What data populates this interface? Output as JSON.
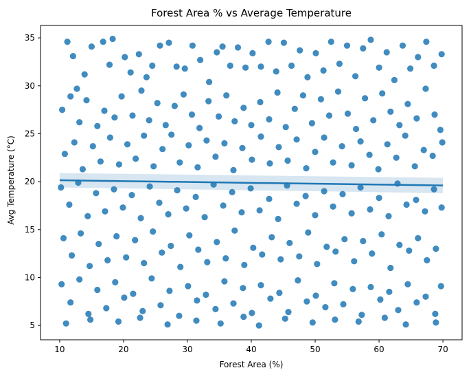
{
  "chart_data": {
    "type": "scatter",
    "title": "Forest Area % vs Average Temperature",
    "xlabel": "Forest Area (%)",
    "ylabel": "Avg Temperature (°C)",
    "xlim": [
      7.0,
      73.0
    ],
    "ylim": [
      3.5,
      36.3
    ],
    "xticks": [
      10,
      20,
      30,
      40,
      50,
      60,
      70
    ],
    "yticks": [
      5,
      10,
      15,
      20,
      25,
      30,
      35
    ],
    "grid": false,
    "legend": "none",
    "colors": {
      "points": "#1f77b4",
      "regression_line": "#1f77b4",
      "confidence_band": "#1f77b4"
    },
    "point_count_note": "dense uniform scatter, values sampled",
    "points": [
      [
        11.2,
        34.6
      ],
      [
        12.1,
        33.1
      ],
      [
        12.7,
        29.7
      ],
      [
        13.9,
        31.2
      ],
      [
        15.0,
        34.1
      ],
      [
        16.8,
        34.6
      ],
      [
        17.8,
        32.2
      ],
      [
        18.3,
        34.9
      ],
      [
        20.2,
        33.0
      ],
      [
        21.1,
        31.4
      ],
      [
        22.4,
        33.3
      ],
      [
        23.6,
        30.9
      ],
      [
        24.5,
        32.1
      ],
      [
        25.7,
        34.2
      ],
      [
        27.1,
        34.5
      ],
      [
        28.3,
        32.0
      ],
      [
        29.6,
        31.8
      ],
      [
        30.8,
        34.2
      ],
      [
        32.0,
        32.7
      ],
      [
        33.4,
        30.4
      ],
      [
        34.6,
        33.5
      ],
      [
        35.5,
        34.1
      ],
      [
        36.7,
        32.1
      ],
      [
        37.9,
        34.0
      ],
      [
        39.1,
        31.9
      ],
      [
        40.2,
        33.4
      ],
      [
        41.5,
        32.0
      ],
      [
        42.7,
        34.6
      ],
      [
        43.9,
        31.5
      ],
      [
        45.1,
        34.5
      ],
      [
        46.3,
        32.1
      ],
      [
        47.6,
        33.7
      ],
      [
        48.8,
        30.9
      ],
      [
        50.1,
        33.4
      ],
      [
        51.3,
        31.6
      ],
      [
        52.5,
        34.6
      ],
      [
        53.8,
        32.3
      ],
      [
        55.0,
        34.2
      ],
      [
        56.3,
        31.0
      ],
      [
        57.5,
        33.9
      ],
      [
        58.7,
        34.8
      ],
      [
        60.0,
        31.9
      ],
      [
        61.2,
        33.5
      ],
      [
        62.4,
        30.6
      ],
      [
        63.7,
        34.2
      ],
      [
        64.9,
        31.8
      ],
      [
        66.1,
        33.0
      ],
      [
        67.4,
        34.6
      ],
      [
        68.6,
        32.1
      ],
      [
        69.8,
        33.3
      ],
      [
        10.4,
        27.5
      ],
      [
        11.7,
        28.9
      ],
      [
        13.1,
        26.2
      ],
      [
        14.2,
        28.5
      ],
      [
        15.9,
        25.8
      ],
      [
        17.0,
        27.4
      ],
      [
        18.6,
        26.7
      ],
      [
        19.7,
        28.9
      ],
      [
        21.4,
        26.9
      ],
      [
        22.8,
        29.5
      ],
      [
        24.0,
        26.4
      ],
      [
        25.3,
        28.2
      ],
      [
        26.6,
        25.9
      ],
      [
        28.0,
        27.9
      ],
      [
        29.4,
        29.1
      ],
      [
        30.7,
        27.0
      ],
      [
        31.9,
        25.6
      ],
      [
        33.3,
        28.4
      ],
      [
        34.9,
        26.8
      ],
      [
        36.1,
        29.0
      ],
      [
        37.4,
        26.3
      ],
      [
        38.8,
        27.7
      ],
      [
        40.0,
        25.9
      ],
      [
        41.4,
        28.3
      ],
      [
        42.8,
        26.5
      ],
      [
        44.1,
        29.3
      ],
      [
        45.4,
        25.7
      ],
      [
        46.8,
        27.6
      ],
      [
        48.1,
        29.0
      ],
      [
        49.5,
        26.1
      ],
      [
        50.9,
        28.6
      ],
      [
        52.2,
        26.9
      ],
      [
        53.6,
        29.4
      ],
      [
        55.1,
        27.1
      ],
      [
        56.4,
        25.5
      ],
      [
        57.8,
        28.7
      ],
      [
        59.1,
        26.4
      ],
      [
        60.5,
        29.2
      ],
      [
        61.8,
        27.3
      ],
      [
        63.2,
        25.9
      ],
      [
        64.5,
        28.1
      ],
      [
        65.9,
        26.6
      ],
      [
        67.3,
        29.7
      ],
      [
        68.7,
        27.0
      ],
      [
        69.6,
        25.4
      ],
      [
        10.8,
        22.9
      ],
      [
        12.3,
        24.1
      ],
      [
        13.6,
        21.3
      ],
      [
        15.2,
        23.7
      ],
      [
        16.4,
        22.1
      ],
      [
        17.9,
        24.6
      ],
      [
        19.3,
        21.8
      ],
      [
        20.6,
        23.9
      ],
      [
        21.9,
        22.4
      ],
      [
        23.2,
        24.8
      ],
      [
        24.7,
        21.6
      ],
      [
        26.1,
        23.4
      ],
      [
        27.5,
        24.9
      ],
      [
        28.8,
        22.0
      ],
      [
        30.2,
        23.8
      ],
      [
        31.6,
        21.5
      ],
      [
        33.0,
        24.3
      ],
      [
        34.4,
        22.6
      ],
      [
        35.8,
        24.0
      ],
      [
        37.2,
        21.2
      ],
      [
        38.6,
        23.5
      ],
      [
        40.1,
        22.3
      ],
      [
        41.5,
        24.7
      ],
      [
        42.9,
        21.9
      ],
      [
        44.3,
        23.6
      ],
      [
        45.7,
        22.2
      ],
      [
        47.1,
        24.4
      ],
      [
        48.6,
        21.4
      ],
      [
        50.0,
        23.1
      ],
      [
        51.4,
        24.6
      ],
      [
        52.8,
        22.0
      ],
      [
        54.2,
        23.7
      ],
      [
        55.7,
        21.7
      ],
      [
        57.1,
        24.2
      ],
      [
        58.5,
        22.8
      ],
      [
        59.9,
        21.3
      ],
      [
        61.3,
        23.9
      ],
      [
        62.7,
        22.5
      ],
      [
        64.1,
        24.8
      ],
      [
        65.6,
        21.6
      ],
      [
        67.0,
        23.3
      ],
      [
        68.4,
        22.7
      ],
      [
        69.9,
        24.1
      ],
      [
        10.2,
        19.4
      ],
      [
        11.5,
        17.6
      ],
      [
        12.9,
        19.9
      ],
      [
        14.4,
        16.4
      ],
      [
        15.7,
        18.8
      ],
      [
        17.1,
        16.9
      ],
      [
        18.5,
        19.2
      ],
      [
        19.9,
        17.3
      ],
      [
        21.3,
        18.6
      ],
      [
        22.7,
        16.2
      ],
      [
        24.1,
        19.5
      ],
      [
        25.6,
        17.8
      ],
      [
        27.0,
        16.6
      ],
      [
        28.4,
        19.1
      ],
      [
        29.8,
        17.2
      ],
      [
        31.3,
        18.4
      ],
      [
        32.7,
        16.3
      ],
      [
        34.1,
        19.7
      ],
      [
        35.6,
        17.5
      ],
      [
        37.0,
        18.9
      ],
      [
        38.5,
        16.8
      ],
      [
        39.9,
        19.3
      ],
      [
        41.3,
        17.0
      ],
      [
        42.8,
        18.2
      ],
      [
        44.2,
        16.1
      ],
      [
        45.6,
        19.6
      ],
      [
        47.1,
        17.7
      ],
      [
        48.5,
        18.5
      ],
      [
        50.0,
        16.5
      ],
      [
        51.4,
        19.0
      ],
      [
        52.8,
        17.4
      ],
      [
        54.3,
        18.7
      ],
      [
        55.7,
        16.7
      ],
      [
        57.1,
        19.4
      ],
      [
        58.6,
        17.1
      ],
      [
        60.0,
        18.3
      ],
      [
        61.5,
        16.4
      ],
      [
        62.9,
        19.8
      ],
      [
        64.3,
        17.6
      ],
      [
        65.8,
        18.1
      ],
      [
        67.2,
        16.9
      ],
      [
        68.6,
        19.2
      ],
      [
        69.8,
        17.3
      ],
      [
        10.6,
        14.1
      ],
      [
        11.9,
        12.3
      ],
      [
        13.3,
        14.6
      ],
      [
        14.7,
        11.2
      ],
      [
        16.1,
        13.5
      ],
      [
        17.5,
        11.8
      ],
      [
        18.9,
        14.3
      ],
      [
        20.4,
        12.1
      ],
      [
        21.8,
        13.9
      ],
      [
        23.2,
        11.5
      ],
      [
        24.6,
        14.8
      ],
      [
        26.0,
        12.6
      ],
      [
        27.4,
        13.3
      ],
      [
        28.9,
        11.1
      ],
      [
        30.3,
        14.4
      ],
      [
        31.7,
        12.9
      ],
      [
        33.1,
        11.6
      ],
      [
        34.6,
        13.7
      ],
      [
        36.0,
        12.0
      ],
      [
        37.4,
        14.9
      ],
      [
        38.9,
        11.3
      ],
      [
        40.3,
        13.1
      ],
      [
        41.7,
        12.4
      ],
      [
        43.2,
        14.2
      ],
      [
        44.6,
        11.9
      ],
      [
        46.0,
        13.6
      ],
      [
        47.5,
        12.2
      ],
      [
        48.9,
        14.7
      ],
      [
        50.3,
        11.4
      ],
      [
        51.8,
        13.2
      ],
      [
        53.2,
        12.7
      ],
      [
        54.6,
        14.0
      ],
      [
        56.1,
        11.7
      ],
      [
        57.5,
        13.8
      ],
      [
        58.9,
        12.5
      ],
      [
        60.4,
        14.5
      ],
      [
        61.8,
        11.0
      ],
      [
        63.2,
        13.4
      ],
      [
        64.7,
        12.8
      ],
      [
        66.1,
        14.1
      ],
      [
        67.5,
        11.8
      ],
      [
        68.9,
        13.0
      ],
      [
        10.3,
        9.3
      ],
      [
        11.7,
        7.4
      ],
      [
        13.1,
        9.8
      ],
      [
        14.5,
        6.2
      ],
      [
        15.9,
        8.7
      ],
      [
        17.3,
        6.8
      ],
      [
        18.7,
        9.5
      ],
      [
        20.1,
        7.9
      ],
      [
        21.5,
        8.3
      ],
      [
        23.0,
        6.5
      ],
      [
        24.4,
        9.9
      ],
      [
        25.8,
        7.1
      ],
      [
        27.2,
        8.6
      ],
      [
        28.7,
        6.0
      ],
      [
        30.1,
        9.1
      ],
      [
        31.5,
        7.6
      ],
      [
        32.9,
        8.2
      ],
      [
        34.4,
        6.7
      ],
      [
        35.8,
        9.6
      ],
      [
        37.2,
        7.3
      ],
      [
        38.7,
        8.9
      ],
      [
        40.1,
        6.3
      ],
      [
        41.5,
        9.2
      ],
      [
        43.0,
        7.8
      ],
      [
        44.4,
        8.4
      ],
      [
        45.8,
        6.4
      ],
      [
        47.3,
        9.7
      ],
      [
        48.7,
        7.5
      ],
      [
        50.1,
        8.1
      ],
      [
        51.6,
        6.9
      ],
      [
        53.0,
        9.4
      ],
      [
        54.4,
        7.2
      ],
      [
        55.9,
        8.8
      ],
      [
        57.3,
        6.1
      ],
      [
        58.7,
        9.0
      ],
      [
        60.2,
        7.7
      ],
      [
        61.6,
        8.5
      ],
      [
        63.0,
        6.6
      ],
      [
        64.5,
        9.3
      ],
      [
        65.9,
        7.4
      ],
      [
        67.3,
        8.0
      ],
      [
        68.8,
        6.2
      ],
      [
        69.7,
        9.1
      ],
      [
        11.0,
        5.2
      ],
      [
        14.8,
        5.6
      ],
      [
        19.2,
        5.4
      ],
      [
        22.6,
        5.8
      ],
      [
        26.9,
        5.1
      ],
      [
        31.4,
        5.5
      ],
      [
        35.2,
        5.2
      ],
      [
        38.8,
        5.9
      ],
      [
        41.2,
        5.0
      ],
      [
        45.3,
        5.7
      ],
      [
        49.6,
        5.3
      ],
      [
        53.1,
        5.6
      ],
      [
        56.8,
        5.4
      ],
      [
        60.9,
        5.8
      ],
      [
        64.2,
        5.1
      ],
      [
        68.9,
        5.3
      ]
    ],
    "regression": {
      "x": [
        10.0,
        70.0
      ],
      "y": [
        20.15,
        19.6
      ],
      "ci_low": [
        19.4,
        18.8
      ],
      "ci_high": [
        20.9,
        20.4
      ]
    }
  }
}
